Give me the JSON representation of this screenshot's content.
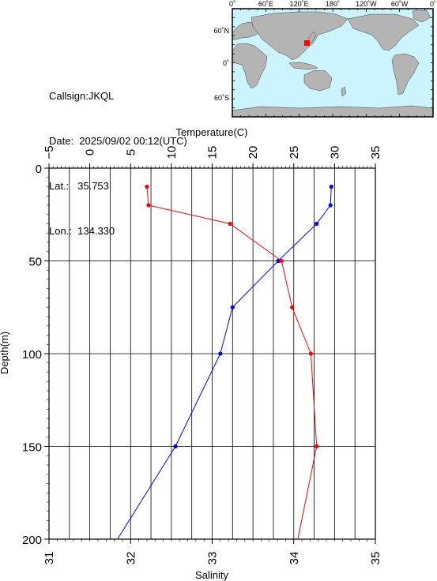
{
  "station": {
    "callsign_line": "Callsign:JKQL",
    "date_line": "Date:  2025/09/02 00:12(UTC)",
    "lat_line": "Lat.:   35.753",
    "lon_line": "Lon.:  134.330"
  },
  "map": {
    "lon_labels": [
      "0˚",
      "60˚E",
      "120˚E",
      "180˚",
      "120˚W",
      "60˚W",
      "0˚"
    ],
    "lat_labels": [
      "60˚N",
      "0˚",
      "60˚S"
    ],
    "ocean_color": "#ccf4ff",
    "land_color": "#b4b4b4",
    "marker_color": "#ff0000"
  },
  "chart_data": {
    "type": "line",
    "top_axis_label": "Temperature(C)",
    "bottom_axis_label": "Salinity",
    "left_axis_label": "Depth(m)",
    "temperature_ticks": [
      "−5",
      "0",
      "5",
      "10",
      "15",
      "20",
      "25",
      "30",
      "35"
    ],
    "salinity_ticks": [
      "31",
      "32",
      "33",
      "34",
      "35"
    ],
    "depth_ticks": [
      "0",
      "50",
      "100",
      "150",
      "200"
    ],
    "temperature_range": [
      -5,
      35
    ],
    "salinity_range": [
      31,
      35
    ],
    "depth_range": [
      0,
      200
    ],
    "series": [
      {
        "axis": "temperature",
        "color": "#0000ff",
        "points": [
          {
            "depth": 10,
            "value": 29.6
          },
          {
            "depth": 20,
            "value": 29.5
          },
          {
            "depth": 30,
            "value": 27.8
          },
          {
            "depth": 50,
            "value": 23.1
          },
          {
            "depth": 75,
            "value": 17.5
          },
          {
            "depth": 100,
            "value": 16.0
          },
          {
            "depth": 150,
            "value": 10.5
          },
          {
            "depth": 200,
            "value": 3.4
          }
        ]
      },
      {
        "axis": "salinity",
        "color": "#ff0000",
        "points": [
          {
            "depth": 10,
            "value": 32.2
          },
          {
            "depth": 20,
            "value": 32.22
          },
          {
            "depth": 30,
            "value": 33.22
          },
          {
            "depth": 50,
            "value": 33.85
          },
          {
            "depth": 75,
            "value": 33.98
          },
          {
            "depth": 100,
            "value": 34.21
          },
          {
            "depth": 150,
            "value": 34.28
          },
          {
            "depth": 200,
            "value": 34.05
          }
        ]
      }
    ]
  }
}
